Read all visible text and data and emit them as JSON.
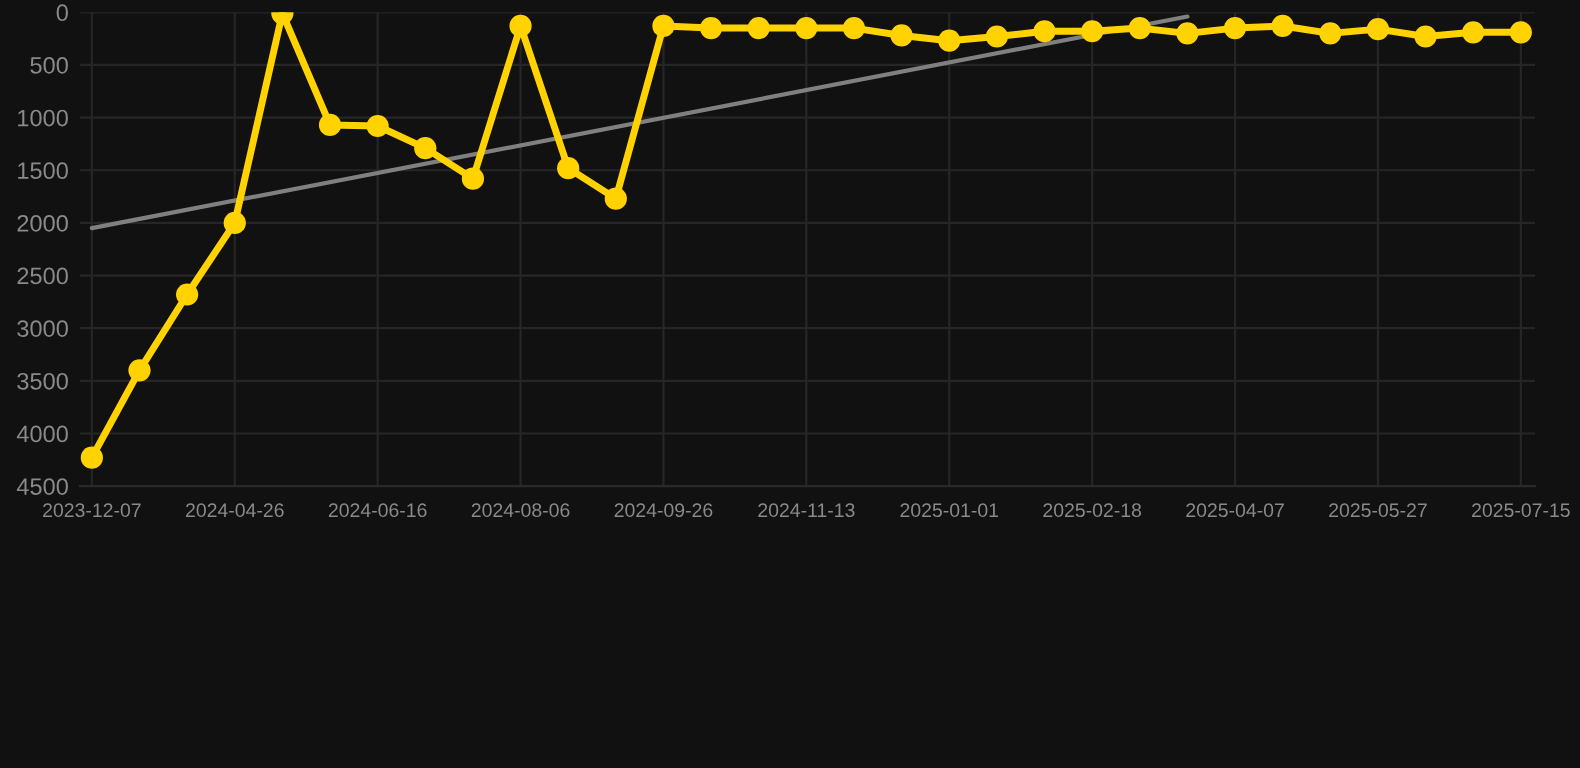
{
  "chart_data": {
    "type": "line",
    "categories": [
      "2023-12-07",
      null,
      null,
      "2024-04-26",
      null,
      null,
      "2024-06-16",
      null,
      null,
      "2024-08-06",
      null,
      null,
      "2024-09-26",
      null,
      null,
      "2024-11-13",
      null,
      null,
      "2025-01-01",
      null,
      null,
      "2025-02-18",
      null,
      null,
      "2025-04-07",
      null,
      null,
      "2025-05-27",
      null,
      null,
      "2025-07-15"
    ],
    "series": [
      {
        "color": "#ffd200",
        "marker": "circle",
        "values": [
          4230,
          3400,
          2680,
          2000,
          10,
          1070,
          1080,
          1290,
          1580,
          130,
          1480,
          1770,
          130,
          150,
          150,
          150,
          150,
          220,
          270,
          230,
          180,
          180,
          150,
          200,
          150,
          130,
          200,
          160,
          230,
          190,
          190
        ]
      },
      {
        "color": "#808080",
        "marker": "none",
        "values": [
          2050,
          null,
          null,
          null,
          null,
          null,
          null,
          null,
          null,
          null,
          null,
          null,
          null,
          null,
          null,
          null,
          null,
          null,
          null,
          null,
          null,
          null,
          null,
          40,
          null,
          null,
          null,
          null,
          null,
          null,
          null
        ]
      }
    ],
    "ylim": [
      4500,
      0
    ],
    "yticks": [
      0,
      500,
      1000,
      1500,
      2000,
      2500,
      3000,
      3500,
      4000,
      4500
    ],
    "grid": true,
    "line_style": "solid"
  }
}
